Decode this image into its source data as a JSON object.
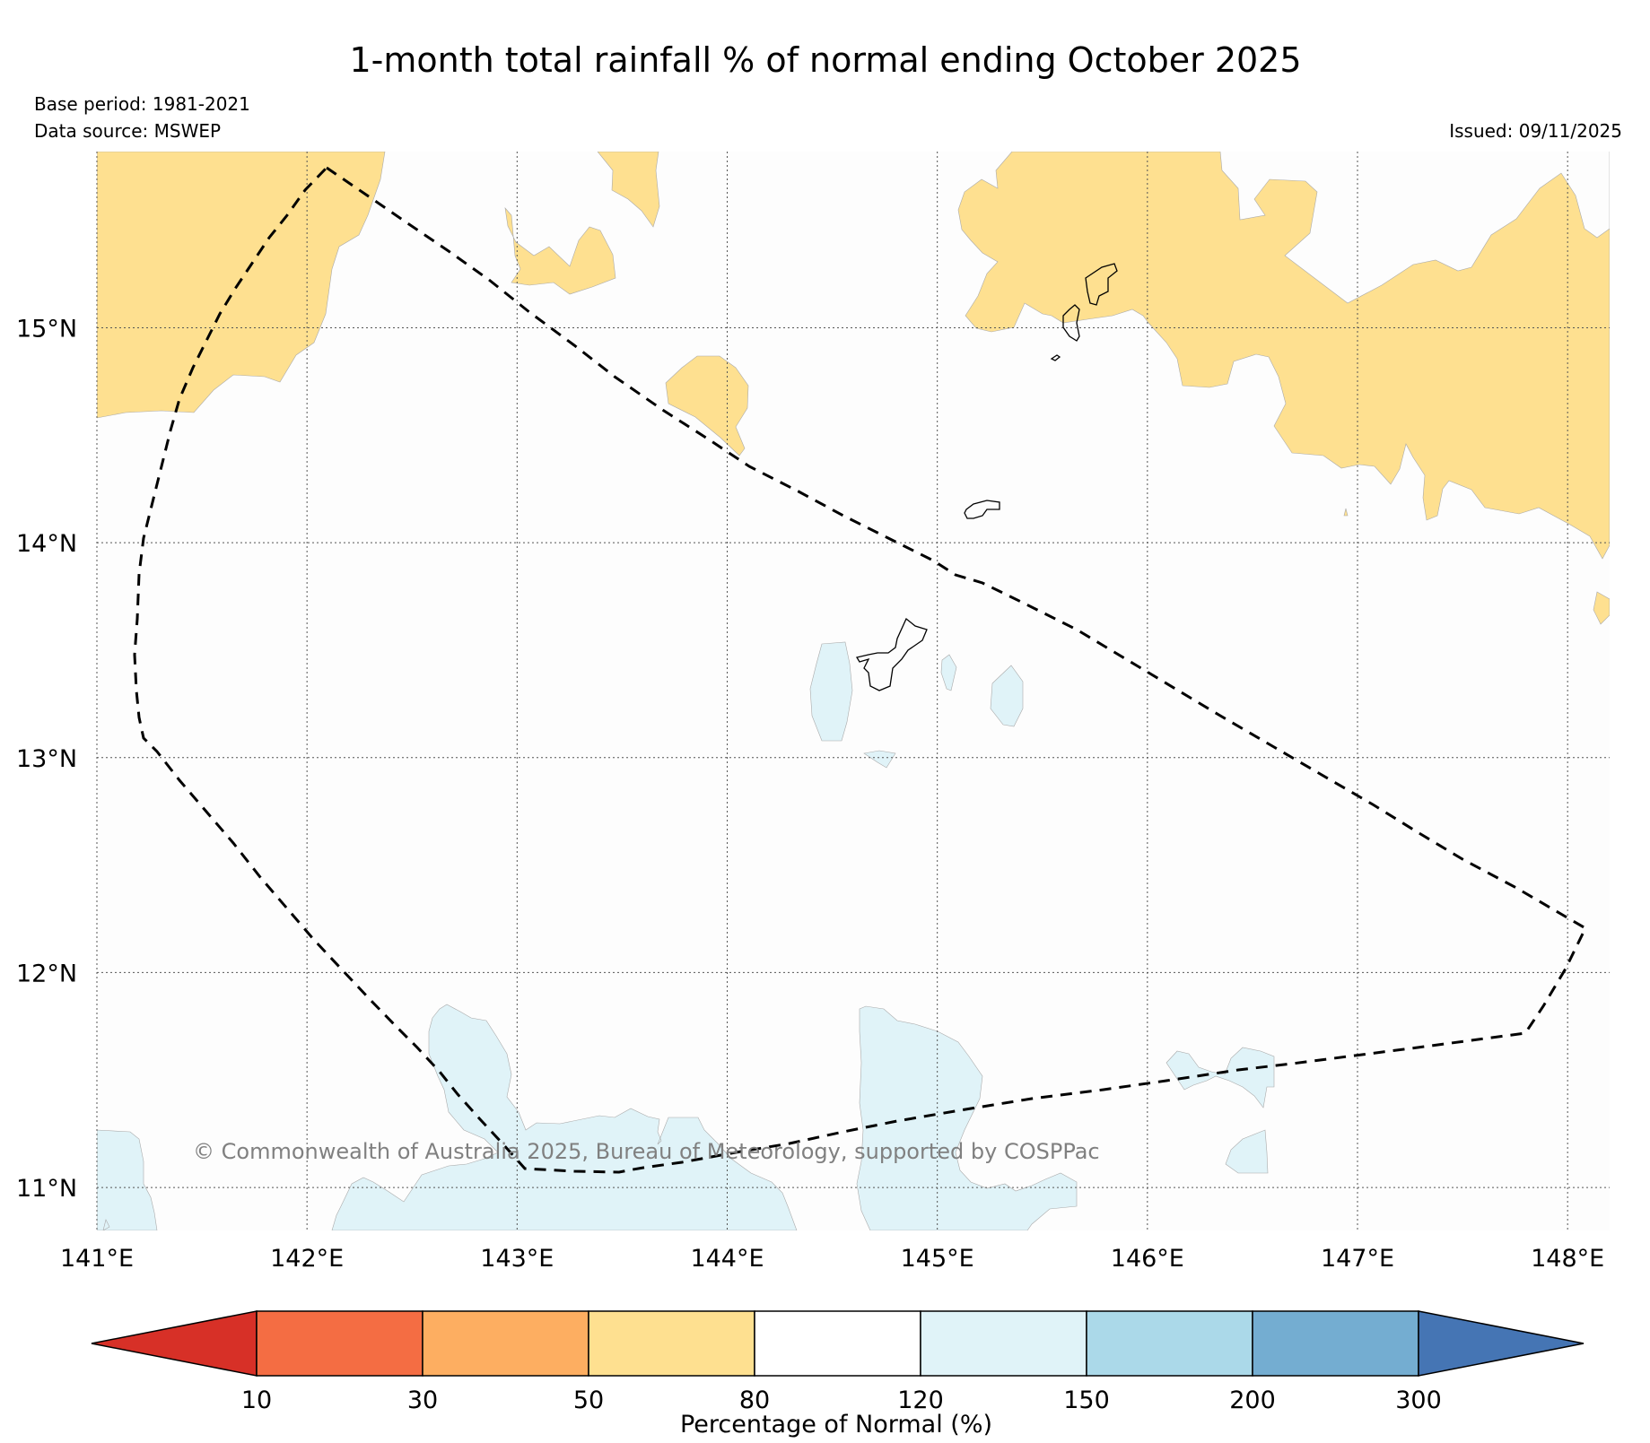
{
  "title": "1-month total rainfall % of normal ending October 2025",
  "base_period": "Base period: 1981-2021",
  "data_source": "Data source: MSWEP",
  "issued": "Issued: 09/11/2025",
  "credit": "© Commonwealth of Australia 2025, Bureau of Meteorology, supported by COSPPac",
  "map": {
    "lon_range": [
      141.0,
      148.2
    ],
    "lat_range": [
      10.8,
      15.82
    ],
    "lon_ticks": [
      {
        "value": 141,
        "label": "141°E"
      },
      {
        "value": 142,
        "label": "142°E"
      },
      {
        "value": 143,
        "label": "143°E"
      },
      {
        "value": 144,
        "label": "144°E"
      },
      {
        "value": 145,
        "label": "145°E"
      },
      {
        "value": 146,
        "label": "146°E"
      },
      {
        "value": 147,
        "label": "147°E"
      },
      {
        "value": 148,
        "label": "148°E"
      }
    ],
    "lat_ticks": [
      {
        "value": 11,
        "label": "11°N"
      },
      {
        "value": 12,
        "label": "12°N"
      },
      {
        "value": 13,
        "label": "13°N"
      },
      {
        "value": 14,
        "label": "14°N"
      },
      {
        "value": 15,
        "label": "15°N"
      }
    ]
  },
  "colorbar": {
    "label": "Percentage of Normal (%)",
    "ticks": [
      "10",
      "30",
      "50",
      "80",
      "120",
      "150",
      "200",
      "300"
    ],
    "colors": [
      "#d73027",
      "#f46d43",
      "#fdae61",
      "#fee090",
      "#ffffff",
      "#e0f3f8",
      "#abd9e9",
      "#74add1",
      "#4575b4"
    ]
  }
}
